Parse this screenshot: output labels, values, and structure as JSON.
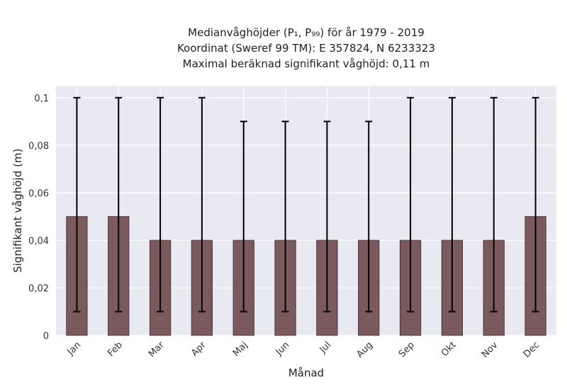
{
  "chart_data": {
    "type": "bar",
    "title_lines": [
      "Medianvåghöjder (P₁, P₉₉) för år 1979 - 2019",
      "Koordinat (Sweref 99 TM): E 357824, N 6233323",
      "Maximal beräknad signifikant våghöjd: 0,11 m"
    ],
    "xlabel": "Månad",
    "ylabel": "Signifikant våghöjd (m)",
    "categories": [
      "Jan",
      "Feb",
      "Mar",
      "Apr",
      "Maj",
      "Jun",
      "Jul",
      "Aug",
      "Sep",
      "Okt",
      "Nov",
      "Dec"
    ],
    "values": [
      0.05,
      0.05,
      0.04,
      0.04,
      0.04,
      0.04,
      0.04,
      0.04,
      0.04,
      0.04,
      0.04,
      0.05
    ],
    "err_low": [
      0.01,
      0.01,
      0.01,
      0.01,
      0.01,
      0.01,
      0.01,
      0.01,
      0.01,
      0.01,
      0.01,
      0.01
    ],
    "err_high": [
      0.1,
      0.1,
      0.1,
      0.1,
      0.09,
      0.09,
      0.09,
      0.09,
      0.1,
      0.1,
      0.1,
      0.1
    ],
    "ylim": [
      0,
      0.105
    ],
    "yticks": [
      0,
      0.02,
      0.04,
      0.06,
      0.08,
      0.1
    ],
    "ytick_labels": [
      "0",
      "0,02",
      "0,04",
      "0,06",
      "0,08",
      "0,1"
    ],
    "grid": true,
    "colors": {
      "bar": "#7a5a5c",
      "bar_edge": "#3a2a2b",
      "errorbar": "#000000",
      "plot_bg": "#e9e9f1",
      "grid": "#ffffff"
    }
  }
}
